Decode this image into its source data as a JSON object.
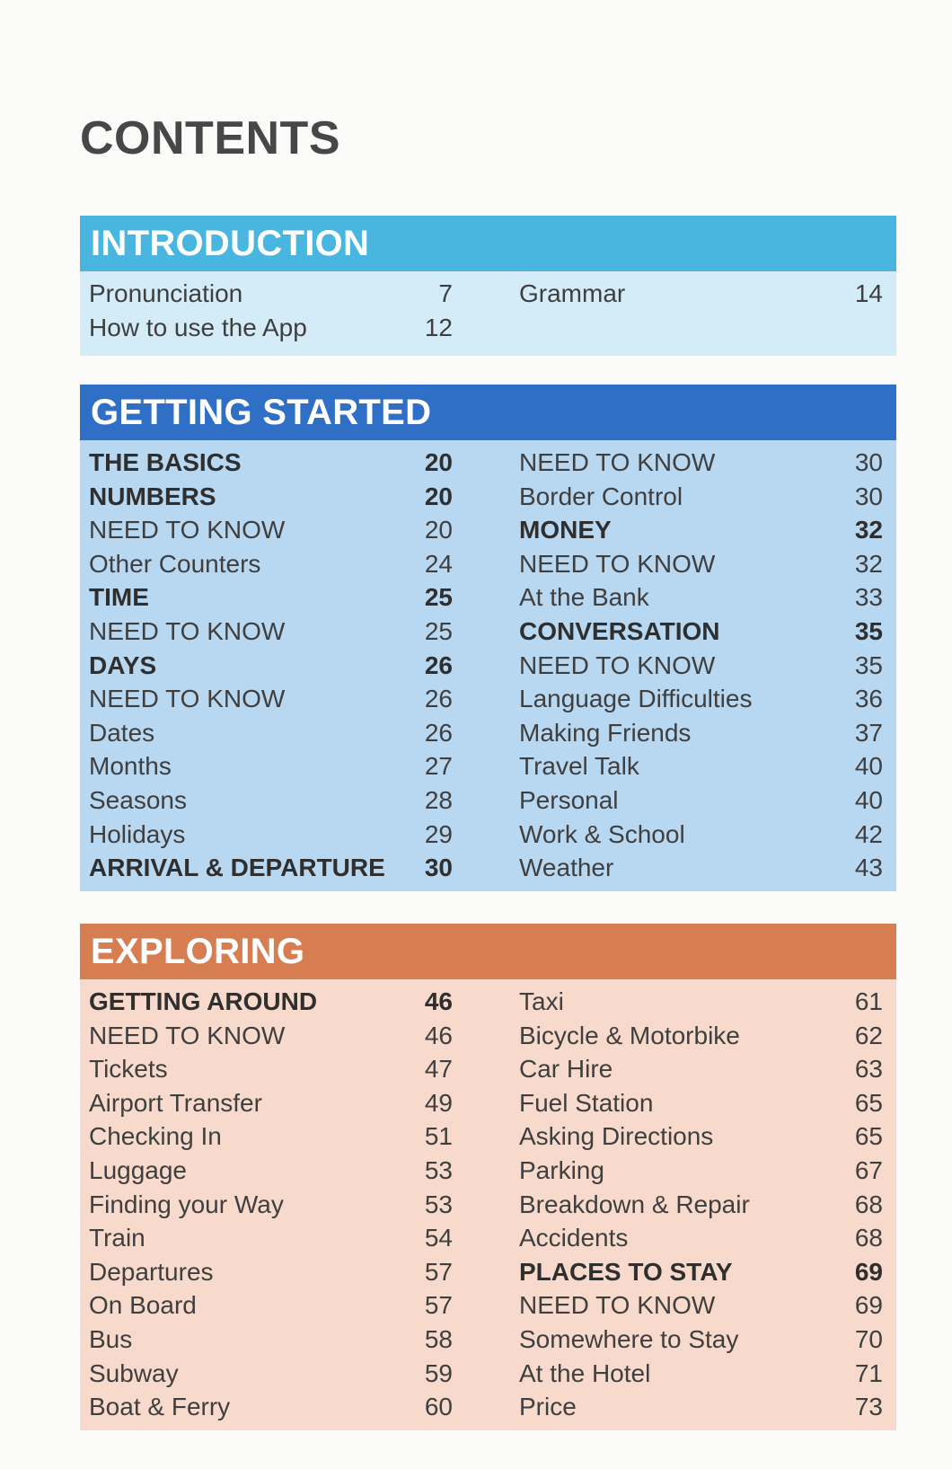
{
  "page": {
    "title": "CONTENTS"
  },
  "colors": {
    "introduction_header": "#48b6df",
    "introduction_body": "#d3ecf7",
    "getting_started_header": "#2f6fc6",
    "getting_started_body": "#b8d7f0",
    "exploring_header": "#d67e52",
    "exploring_body": "#f7dacb"
  },
  "sections": [
    {
      "title": "INTRODUCTION",
      "left": [
        {
          "label": "Pronunciation",
          "page": "7",
          "bold": false
        },
        {
          "label": "How to use the App",
          "page": "12",
          "bold": false
        }
      ],
      "right": [
        {
          "label": "Grammar",
          "page": "14",
          "bold": false
        }
      ]
    },
    {
      "title": "GETTING STARTED",
      "left": [
        {
          "label": "THE BASICS",
          "page": "20",
          "bold": true
        },
        {
          "label": "NUMBERS",
          "page": "20",
          "bold": true
        },
        {
          "label": "NEED TO KNOW",
          "page": "20",
          "bold": false
        },
        {
          "label": "Other Counters",
          "page": "24",
          "bold": false
        },
        {
          "label": "TIME",
          "page": "25",
          "bold": true
        },
        {
          "label": "NEED TO KNOW",
          "page": "25",
          "bold": false
        },
        {
          "label": "DAYS",
          "page": "26",
          "bold": true
        },
        {
          "label": "NEED TO KNOW",
          "page": "26",
          "bold": false
        },
        {
          "label": "Dates",
          "page": "26",
          "bold": false
        },
        {
          "label": "Months",
          "page": "27",
          "bold": false
        },
        {
          "label": "Seasons",
          "page": "28",
          "bold": false
        },
        {
          "label": "Holidays",
          "page": "29",
          "bold": false
        },
        {
          "label": "ARRIVAL & DEPARTURE",
          "page": "30",
          "bold": true
        }
      ],
      "right": [
        {
          "label": "NEED TO KNOW",
          "page": "30",
          "bold": false
        },
        {
          "label": "Border Control",
          "page": "30",
          "bold": false
        },
        {
          "label": "MONEY",
          "page": "32",
          "bold": true
        },
        {
          "label": "NEED TO KNOW",
          "page": "32",
          "bold": false
        },
        {
          "label": "At the Bank",
          "page": "33",
          "bold": false
        },
        {
          "label": "CONVERSATION",
          "page": "35",
          "bold": true
        },
        {
          "label": "NEED TO KNOW",
          "page": "35",
          "bold": false
        },
        {
          "label": "Language Difficulties",
          "page": "36",
          "bold": false
        },
        {
          "label": "Making Friends",
          "page": "37",
          "bold": false
        },
        {
          "label": "Travel Talk",
          "page": "40",
          "bold": false
        },
        {
          "label": "Personal",
          "page": "40",
          "bold": false
        },
        {
          "label": "Work & School",
          "page": "42",
          "bold": false
        },
        {
          "label": "Weather",
          "page": "43",
          "bold": false
        }
      ]
    },
    {
      "title": "EXPLORING",
      "left": [
        {
          "label": "GETTING AROUND",
          "page": "46",
          "bold": true
        },
        {
          "label": "NEED TO KNOW",
          "page": "46",
          "bold": false
        },
        {
          "label": "Tickets",
          "page": "47",
          "bold": false
        },
        {
          "label": "Airport Transfer",
          "page": "49",
          "bold": false
        },
        {
          "label": "Checking In",
          "page": "51",
          "bold": false
        },
        {
          "label": "Luggage",
          "page": "53",
          "bold": false
        },
        {
          "label": "Finding your Way",
          "page": "53",
          "bold": false
        },
        {
          "label": "Train",
          "page": "54",
          "bold": false
        },
        {
          "label": "Departures",
          "page": "57",
          "bold": false
        },
        {
          "label": "On Board",
          "page": "57",
          "bold": false
        },
        {
          "label": "Bus",
          "page": "58",
          "bold": false
        },
        {
          "label": "Subway",
          "page": "59",
          "bold": false
        },
        {
          "label": "Boat & Ferry",
          "page": "60",
          "bold": false
        }
      ],
      "right": [
        {
          "label": "Taxi",
          "page": "61",
          "bold": false
        },
        {
          "label": "Bicycle & Motorbike",
          "page": "62",
          "bold": false
        },
        {
          "label": "Car Hire",
          "page": "63",
          "bold": false
        },
        {
          "label": "Fuel Station",
          "page": "65",
          "bold": false
        },
        {
          "label": "Asking Directions",
          "page": "65",
          "bold": false
        },
        {
          "label": "Parking",
          "page": "67",
          "bold": false
        },
        {
          "label": "Breakdown & Repair",
          "page": "68",
          "bold": false
        },
        {
          "label": "Accidents",
          "page": "68",
          "bold": false
        },
        {
          "label": "PLACES TO STAY",
          "page": "69",
          "bold": true
        },
        {
          "label": "NEED TO KNOW",
          "page": "69",
          "bold": false
        },
        {
          "label": "Somewhere to Stay",
          "page": "70",
          "bold": false
        },
        {
          "label": "At the Hotel",
          "page": "71",
          "bold": false
        },
        {
          "label": "Price",
          "page": "73",
          "bold": false
        }
      ]
    }
  ]
}
